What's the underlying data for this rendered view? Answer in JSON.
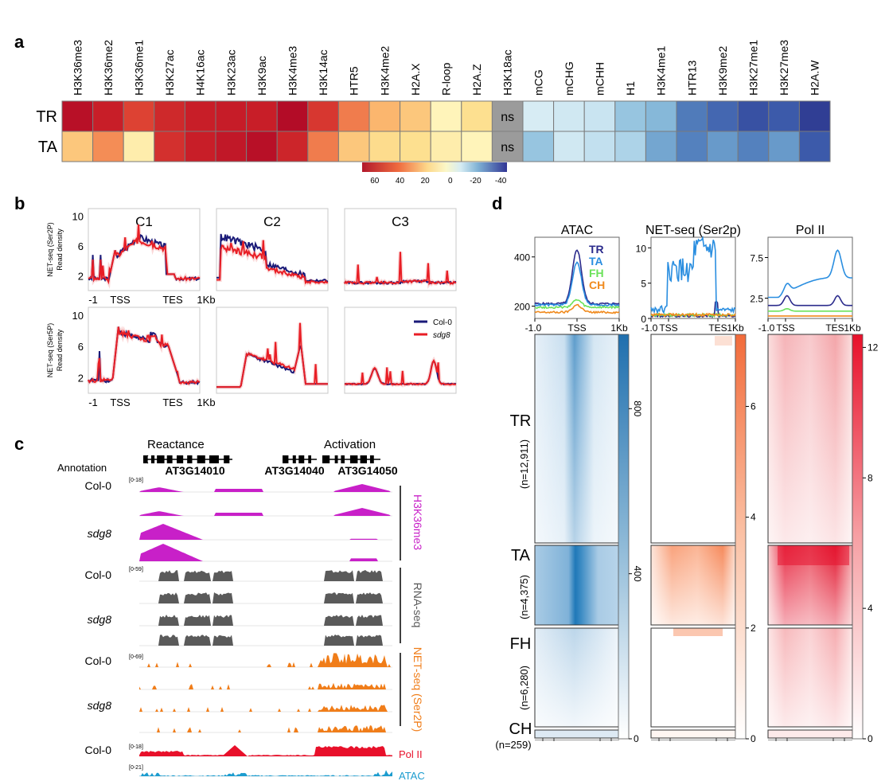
{
  "panels": {
    "a": "a",
    "b": "b",
    "c": "c",
    "d": "d"
  },
  "heatmap_a": {
    "columns": [
      "H3K36me3",
      "H3K36me2",
      "H3K36me1",
      "H3K27ac",
      "H4K16ac",
      "H3K23ac",
      "H3K9ac",
      "H3K4me3",
      "H3K14ac",
      "HTR5",
      "H3K4me2",
      "H2A.X",
      "R-loop",
      "H2A.Z",
      "H3K18ac",
      "mCG",
      "mCHG",
      "mCHH",
      "H1",
      "H3K4me1",
      "HTR13",
      "H3K9me2",
      "H3K27me1",
      "H3K27me3",
      "H2A.W"
    ],
    "rows": [
      "TR",
      "TA"
    ],
    "values": [
      [
        62,
        55,
        45,
        52,
        55,
        56,
        55,
        64,
        48,
        33,
        22,
        18,
        6,
        12,
        null,
        -8,
        -10,
        -12,
        -22,
        -25,
        -35,
        -38,
        -42,
        -40,
        -46
      ],
      [
        18,
        30,
        8,
        50,
        55,
        58,
        62,
        53,
        33,
        18,
        13,
        12,
        8,
        6,
        null,
        -22,
        -10,
        -14,
        -18,
        -28,
        -34,
        -30,
        -34,
        -30,
        -40
      ]
    ],
    "ns_label": "ns",
    "colorbar_ticks": [
      "60",
      "40",
      "20",
      "0",
      "-20",
      "-40"
    ],
    "colorbar_tick_values": [
      60,
      40,
      20,
      0,
      -20,
      -40
    ],
    "colorbar_range": [
      70,
      -45
    ]
  },
  "panel_b": {
    "column_titles": [
      "C1",
      "C2",
      "C3"
    ],
    "row1_ylabel": [
      "NET-seq (Ser2P)",
      "Read density"
    ],
    "row2_ylabel": [
      "NET-seq (Ser5P)",
      "Read density"
    ],
    "yticks": [
      "10",
      "6",
      "2"
    ],
    "xticks": [
      "-1",
      "TSS",
      "TES",
      "1Kb"
    ],
    "legend": [
      {
        "label": "Col-0",
        "color": "#1a1a78"
      },
      {
        "label": "sdg8",
        "color": "#e81e25"
      }
    ]
  },
  "panel_c": {
    "regions": [
      "Reactance",
      "Activation"
    ],
    "genes": [
      "AT3G14010",
      "AT3G14040",
      "AT3G14050"
    ],
    "annotation_label": "Annotation",
    "tracks": [
      {
        "name": "H3K36me3",
        "color": "#c820c8",
        "scale": "[0-18]",
        "samples": [
          "Col-0",
          "",
          "sdg8",
          ""
        ]
      },
      {
        "name": "RNA-seq",
        "color": "#5a5a5a",
        "scale": "[0-59]",
        "samples": [
          "Col-0",
          "",
          "sdg8",
          ""
        ]
      },
      {
        "name": "NET-seq (Ser2P)",
        "color": "#f07d19",
        "scale": "[0-69]",
        "samples": [
          "Col-0",
          "",
          "sdg8",
          ""
        ]
      },
      {
        "name": "Pol II",
        "color": "#e8102a",
        "scale": "[0-18]",
        "samples": [
          "Col-0"
        ]
      },
      {
        "name": "ATAC",
        "color": "#1b9ccf",
        "scale": "[0-21]",
        "samples": [
          ""
        ]
      }
    ]
  },
  "panel_d": {
    "column_titles": [
      "ATAC",
      "NET-seq (Ser2p)",
      "Pol II"
    ],
    "profile_yticks": [
      [
        "400",
        "200"
      ],
      [
        "10",
        "5",
        "0"
      ],
      [
        "7.5",
        "2.5"
      ]
    ],
    "profile_xticks": [
      [
        "-1.0",
        "TSS",
        "1Kb"
      ],
      [
        "-1.0",
        "TSS",
        "TES",
        "1Kb"
      ],
      [
        "-1.0",
        "TSS",
        "TES",
        "1Kb"
      ]
    ],
    "legend": [
      {
        "label": "TR",
        "color": "#2b2b8c"
      },
      {
        "label": "TA",
        "color": "#2a8ee0"
      },
      {
        "label": "FH",
        "color": "#6be25a"
      },
      {
        "label": "CH",
        "color": "#f08a1d"
      }
    ],
    "clusters": [
      {
        "name": "TR",
        "n": "(n=12,911)"
      },
      {
        "name": "TA",
        "n": "(n=4,375)"
      },
      {
        "name": "FH",
        "n": "(n=6,280)"
      },
      {
        "name": "CH",
        "n": "(n=259)"
      }
    ],
    "colorbars": [
      {
        "ticks": [
          "800",
          "400",
          "0"
        ],
        "tick_values": [
          800,
          400,
          0
        ],
        "max": 980,
        "color": "#1f6fae"
      },
      {
        "ticks": [
          "6",
          "4",
          "2",
          "0"
        ],
        "tick_values": [
          6,
          4,
          2,
          0
        ],
        "max": 7.3,
        "color": "#f26b3a"
      },
      {
        "ticks": [
          "12",
          "8",
          "4",
          "0"
        ],
        "tick_values": [
          12,
          8,
          4,
          0
        ],
        "max": 12.4,
        "color": "#e8102a"
      }
    ],
    "chart_data": [
      {
        "type": "line",
        "title": "ATAC",
        "x": [
          "-1.0",
          "TSS",
          "1Kb"
        ],
        "series": [
          {
            "name": "TR",
            "peak": 430
          },
          {
            "name": "TA",
            "peak": 380
          },
          {
            "name": "FH",
            "peak": 220
          },
          {
            "name": "CH",
            "peak": 205
          }
        ]
      },
      {
        "type": "line",
        "title": "NET-seq (Ser2p)",
        "series": [
          {
            "name": "TA",
            "peak": 10
          }
        ]
      },
      {
        "type": "line",
        "title": "Pol II",
        "series": [
          {
            "name": "TA",
            "peak": 8.8
          }
        ]
      }
    ]
  }
}
